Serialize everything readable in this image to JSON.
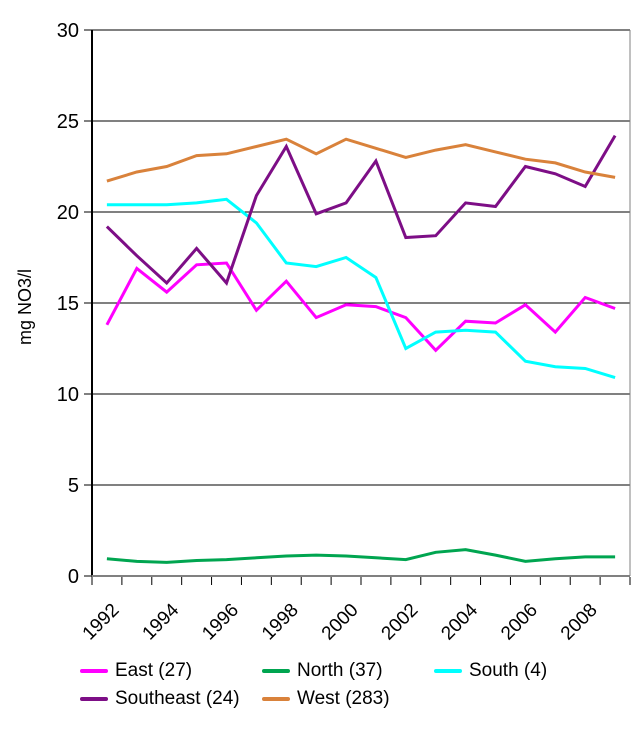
{
  "chart_data": {
    "type": "line",
    "title": "",
    "xlabel": "",
    "ylabel": "mg NO3/l",
    "ylim": [
      0,
      30
    ],
    "yticks": [
      0,
      5,
      10,
      15,
      20,
      25,
      30
    ],
    "grid": "horizontal",
    "legend_position": "bottom-left",
    "x": [
      1992,
      1993,
      1994,
      1995,
      1996,
      1997,
      1998,
      1999,
      2000,
      2001,
      2002,
      2003,
      2004,
      2005,
      2006,
      2007,
      2008,
      2009
    ],
    "xtick_labels": [
      "1992",
      "1994",
      "1996",
      "1998",
      "2000",
      "2002",
      "2004",
      "2006",
      "2008"
    ],
    "series": [
      {
        "name": "East (27)",
        "color": "#FF00FF",
        "values": [
          13.8,
          16.9,
          15.6,
          17.1,
          17.2,
          14.6,
          16.2,
          14.2,
          14.9,
          14.8,
          14.2,
          12.4,
          14.0,
          13.9,
          14.9,
          13.4,
          15.3,
          14.7
        ]
      },
      {
        "name": "North (37)",
        "color": "#00A550",
        "values": [
          0.95,
          0.8,
          0.75,
          0.85,
          0.9,
          1.0,
          1.1,
          1.15,
          1.1,
          1.0,
          0.9,
          1.3,
          1.45,
          1.15,
          0.8,
          0.95,
          1.05,
          1.05
        ]
      },
      {
        "name": "South (4)",
        "color": "#00FFFF",
        "values": [
          20.4,
          20.4,
          20.4,
          20.5,
          20.7,
          19.4,
          17.2,
          17.0,
          17.5,
          16.4,
          12.5,
          13.4,
          13.5,
          13.4,
          11.8,
          11.5,
          11.4,
          10.9
        ]
      },
      {
        "name": "Southeast (24)",
        "color": "#7D0E86",
        "values": [
          19.2,
          17.6,
          16.1,
          18.0,
          16.1,
          20.9,
          23.6,
          19.9,
          20.5,
          22.8,
          18.6,
          18.7,
          20.5,
          20.3,
          22.5,
          22.1,
          21.4,
          24.2
        ]
      },
      {
        "name": "West (283)",
        "color": "#D9823B",
        "values": [
          21.7,
          22.2,
          22.5,
          23.1,
          23.2,
          23.6,
          24.0,
          23.2,
          24.0,
          23.5,
          23.0,
          23.4,
          23.7,
          23.3,
          22.9,
          22.7,
          22.2,
          21.9
        ]
      }
    ],
    "colors": {
      "gridline": "#000000",
      "axis_left": "#000000",
      "axis_bottom": "#808080",
      "tick": "#000000",
      "plot_border_right": "#808080"
    }
  }
}
